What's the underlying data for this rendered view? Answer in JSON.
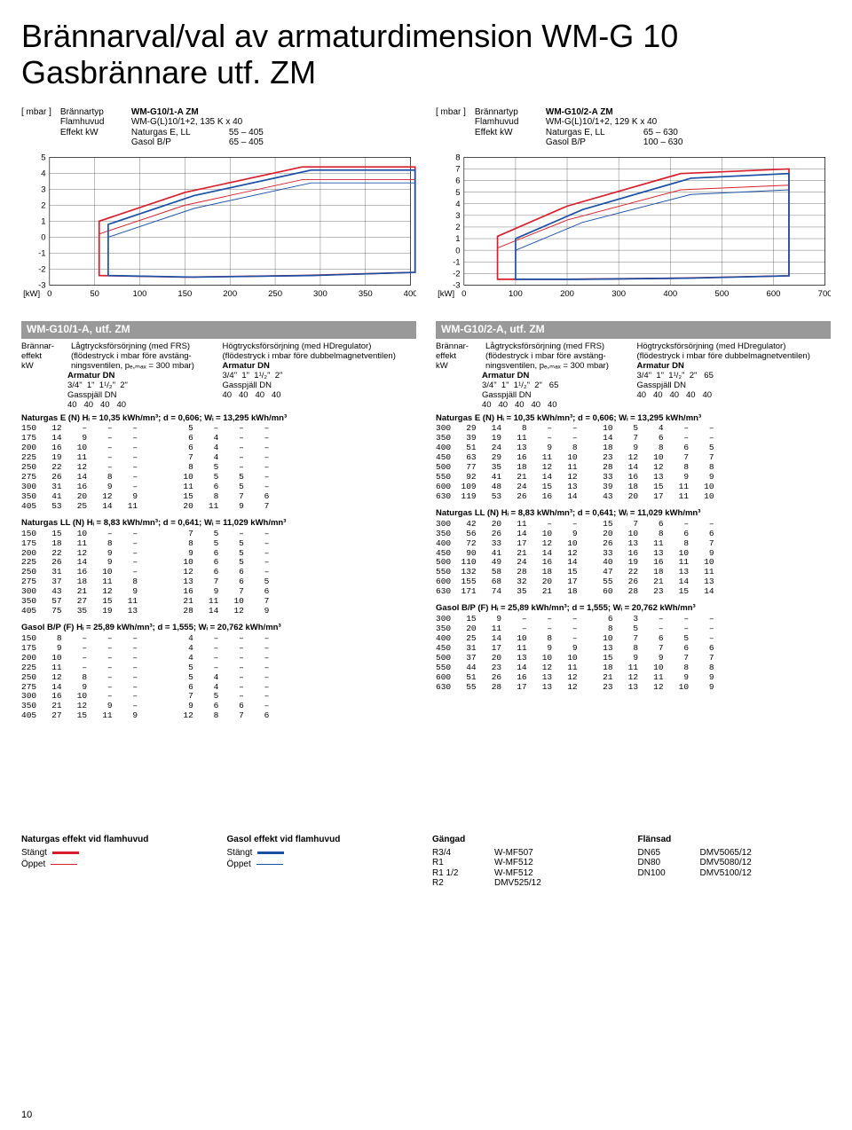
{
  "title": "Brännarval/val av armaturdimension WM-G 10 Gasbrännare utf. ZM",
  "page_num": "10",
  "chart1": {
    "type": "line-envelope",
    "unit_y": "[ mbar ]",
    "unit_x": "[kW]",
    "header": {
      "brannartyp_lab": "Brännartyp",
      "brannartyp": "WM-G10/1-A ZM",
      "flamhuvud_lab": "Flamhuvud",
      "flamhuvud": "WM-G(L)10/1+2, 135 K x 40",
      "effekt_lab": "Effekt kW",
      "effekt1": "Naturgas E, LL",
      "effekt1_rng": "55 – 405",
      "effekt2": "Gasol B/P",
      "effekt2_rng": "65 – 405"
    },
    "ylim": [
      -3,
      5
    ],
    "yticks": [
      -3,
      -2,
      -1,
      0,
      1,
      2,
      3,
      4,
      5
    ],
    "xlim": [
      0,
      400
    ],
    "xticks": [
      0,
      50,
      100,
      150,
      200,
      250,
      300,
      350,
      400
    ],
    "colors": {
      "ng_closed": "#d81e2c",
      "ng_open": "#d81e2c",
      "gasol_closed": "#1b50a5",
      "gasol_open": "#1b50a5",
      "grid": "#000",
      "bg": "#fff"
    },
    "line_width_closed": 1.6,
    "line_width_open": 0.9
  },
  "chart2": {
    "type": "line-envelope",
    "unit_y": "[ mbar ]",
    "unit_x": "[kW]",
    "header": {
      "brannartyp_lab": "Brännartyp",
      "brannartyp": "WM-G10/2-A ZM",
      "flamhuvud_lab": "Flamhuvud",
      "flamhuvud": "WM-G(L)10/1+2, 129 K x 40",
      "effekt_lab": "Effekt kW",
      "effekt1": "Naturgas E, LL",
      "effekt1_rng": "65 – 630",
      "effekt2": "Gasol B/P",
      "effekt2_rng": "100 – 630"
    },
    "ylim": [
      -3,
      8
    ],
    "yticks": [
      -3,
      -2,
      -1,
      0,
      1,
      2,
      3,
      4,
      5,
      6,
      7,
      8
    ],
    "xlim": [
      0,
      700
    ],
    "xticks": [
      0,
      100,
      200,
      300,
      400,
      500,
      600,
      700
    ],
    "colors": {
      "ng_closed": "#d81e2c",
      "ng_open": "#d81e2c",
      "gasol_closed": "#1b50a5",
      "gasol_open": "#1b50a5",
      "grid": "#000",
      "bg": "#fff"
    },
    "line_width_closed": 1.6,
    "line_width_open": 0.9
  },
  "section1": {
    "title": "WM-G10/1-A, utf. ZM",
    "col_effect_lab": "Brännar-\neffekt\nkW",
    "left_desc": "Lågtrycksförsörjning (med FRS) (flödestryck i mbar före avstäng­ningsventilen, pₑ,ₘₐₓ = 300 mbar)",
    "right_desc": "Högtrycksförsörjning (med HD­regulator) (flödestryck i mbar före dubbelmagnetventilen)",
    "armatur_lab": "Armatur DN",
    "armatur_left": "3/4\"  1\"  1¹/₂\"  2\"",
    "armatur_right": "3/4\"  1\"  1¹/₂\"  2\"",
    "gasspjall_lab": "Gasspjäll DN",
    "gasspjall_left": "40   40   40   40",
    "gasspjall_right": "40   40   40   40",
    "tables": [
      {
        "hdr": "Naturgas E (N)  Hᵢ = 10,35 kWh/mn³;  d = 0,606;  Wᵢ = 13,295 kWh/mn³",
        "rows": [
          "150   12    –    –    –          5    –    –    –",
          "175   14    9    –    –          6    4    –    –",
          "200   16   10    –    –          6    4    –    –",
          "225   19   11    –    –          7    4    –    –",
          "250   22   12    –    –          8    5    –    –",
          "275   26   14    8    –         10    5    5    –",
          "300   31   16    9    –         11    6    5    –",
          "350   41   20   12    9         15    8    7    6",
          "405   53   25   14   11         20   11    9    7"
        ]
      },
      {
        "hdr": "Naturgas LL (N)  Hᵢ = 8,83 kWh/mn³;  d = 0,641;  Wᵢ = 11,029 kWh/mn³",
        "rows": [
          "150   15   10    –    –          7    5    –    –",
          "175   18   11    8    –          8    5    5    –",
          "200   22   12    9    –          9    6    5    –",
          "225   26   14    9    –         10    6    5    –",
          "250   31   16   10    –         12    6    6    –",
          "275   37   18   11    8         13    7    6    5",
          "300   43   21   12    9         16    9    7    6",
          "350   57   27   15   11         21   11   10    7",
          "405   75   35   19   13         28   14   12    9"
        ]
      },
      {
        "hdr": "Gasol B/P (F)  Hᵢ = 25,89 kWh/mn³;  d = 1,555;  Wᵢ = 20,762 kWh/mn³",
        "rows": [
          "150    8    –    –    –          4    –    –    –",
          "175    9    –    –    –          4    –    –    –",
          "200   10    –    –    –          4    –    –    –",
          "225   11    –    –    –          5    –    –    –",
          "250   12    8    –    –          5    4    –    –",
          "275   14    9    –    –          6    4    –    –",
          "300   16   10    –    –          7    5    –    –",
          "350   21   12    9    –          9    6    6    –",
          "405   27   15   11    9         12    8    7    6"
        ]
      }
    ]
  },
  "section2": {
    "title": "WM-G10/2-A, utf. ZM",
    "col_effect_lab": "Brännar-\neffekt\nkW",
    "left_desc": "Lågtrycksförsörjning (med FRS) (flödestryck i mbar före avstäng­ningsventilen, pₑ,ₘₐₓ = 300 mbar)",
    "right_desc": "Högtrycksförsörjning (med HD­regulator) (flödestryck i mbar före dubbelmagnetventilen)",
    "armatur_lab": "Armatur DN",
    "armatur_left": "3/4\"  1\"  1¹/₂\"  2\"   65",
    "armatur_right": "3/4\"  1\"  1¹/₂\"  2\"   65",
    "gasspjall_lab": "Gasspjäll DN",
    "gasspjall_left": "40   40   40   40   40",
    "gasspjall_right": "40   40   40   40   40",
    "tables": [
      {
        "hdr": "Naturgas E (N)  Hᵢ = 10,35 kWh/mn³;  d = 0,606;  Wᵢ = 13,295 kWh/mn³",
        "rows": [
          "300   29   14    8    –    –     10    5    4    –    –",
          "350   39   19   11    –    –     14    7    6    –    –",
          "400   51   24   13    9    8     18    9    8    6    5",
          "450   63   29   16   11   10     23   12   10    7    7",
          "500   77   35   18   12   11     28   14   12    8    8",
          "550   92   41   21   14   12     33   16   13    9    9",
          "600  109   48   24   15   13     39   18   15   11   10",
          "630  119   53   26   16   14     43   20   17   11   10"
        ]
      },
      {
        "hdr": "Naturgas LL (N)  Hᵢ = 8,83 kWh/mn³;  d = 0,641;  Wᵢ = 11,029 kWh/mn³",
        "rows": [
          "300   42   20   11    –    –     15    7    6    –    –",
          "350   56   26   14   10    9     20   10    8    6    6",
          "400   72   33   17   12   10     26   13   11    8    7",
          "450   90   41   21   14   12     33   16   13   10    9",
          "500  110   49   24   16   14     40   19   16   11   10",
          "550  132   58   28   18   15     47   22   18   13   11",
          "600  155   68   32   20   17     55   26   21   14   13",
          "630  171   74   35   21   18     60   28   23   15   14"
        ]
      },
      {
        "hdr": "Gasol B/P (F)  Hᵢ = 25,89 kWh/mn³;  d = 1,555;  Wᵢ = 20,762 kWh/mn³",
        "rows": [
          "300   15    9    –    –    –      6    3    –    –    –",
          "350   20   11    –    –    –      8    5    –    –    –",
          "400   25   14   10    8    –     10    7    6    5    –",
          "450   31   17   11    9    9     13    8    7    6    6",
          "500   37   20   13   10   10     15    9    9    7    7",
          "550   44   23   14   12   11     18   11   10    8    8",
          "600   51   26   16   13   12     21   12   11    9    9",
          "630   55   28   17   13   12     23   13   12   10    9"
        ]
      }
    ]
  },
  "legend": {
    "ng": {
      "title": "Naturgas effekt vid flamhuvud",
      "closed": "Stängt",
      "open": "Öppet",
      "closed_color": "#d81e2c",
      "open_color": "#d81e2c"
    },
    "gasol": {
      "title": "Gasol effekt vid flamhuvud",
      "closed": "Stängt",
      "open": "Öppet",
      "closed_color": "#1b50a5",
      "open_color": "#1b50a5"
    },
    "gangad": {
      "title": "Gängad",
      "items": [
        [
          "R3/4",
          "W-MF507"
        ],
        [
          "R1",
          "W-MF512"
        ],
        [
          "R1 1/2",
          "W-MF512"
        ],
        [
          "R2",
          "DMV525/12"
        ]
      ]
    },
    "flansad": {
      "title": "Flänsad",
      "items": [
        [
          "DN65",
          "DMV5065/12"
        ],
        [
          "DN80",
          "DMV5080/12"
        ],
        [
          "DN100",
          "DMV5100/12"
        ]
      ]
    }
  }
}
